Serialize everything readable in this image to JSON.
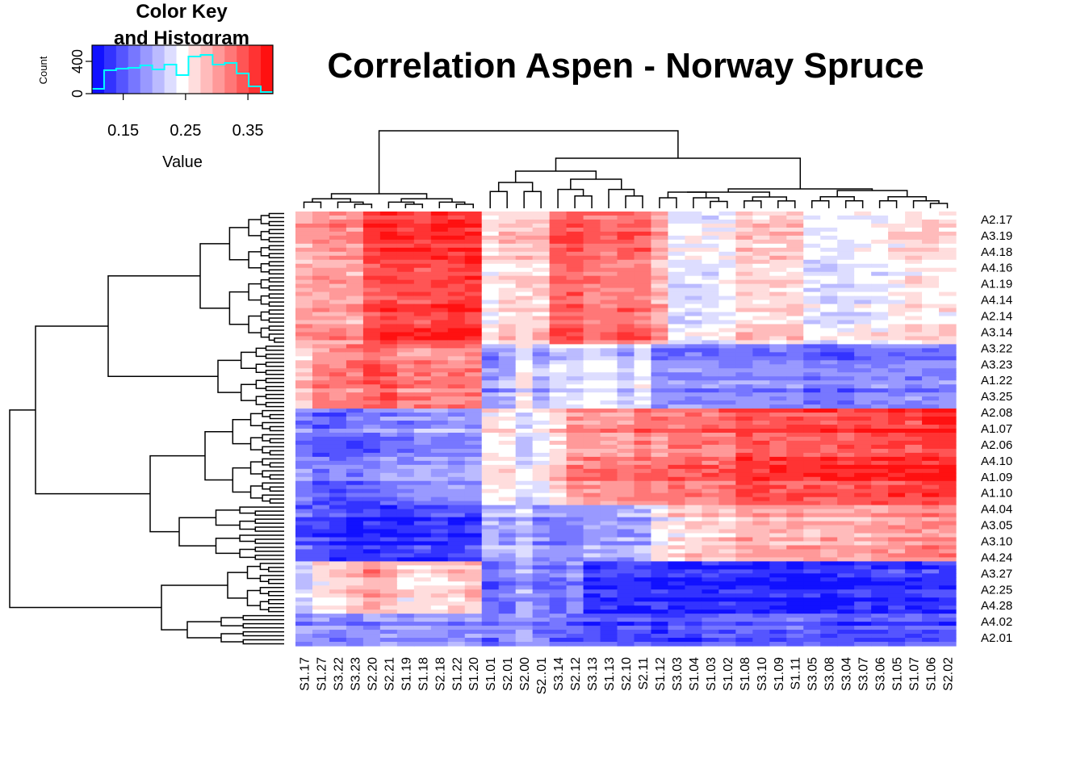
{
  "chart_data": {
    "type": "heatmap",
    "title": "Correlation Aspen - Norway Spruce",
    "color_key": {
      "title_line1": "Color Key",
      "title_line2": "and Histogram",
      "xlabel": "Value",
      "ylabel": "Count",
      "x_ticks": [
        "0.15",
        "0.25",
        "0.35"
      ],
      "x_tick_values": [
        0.15,
        0.25,
        0.35
      ],
      "y_ticks": [
        "0",
        "400"
      ],
      "y_tick_values": [
        0,
        400
      ],
      "value_range": [
        0.1,
        0.39
      ],
      "count_max": 600,
      "histogram_counts": [
        60,
        290,
        310,
        320,
        350,
        300,
        360,
        230,
        460,
        480,
        360,
        380,
        250,
        90,
        20
      ],
      "colors": [
        "#0000ff",
        "#ffffff",
        "#ff0000"
      ],
      "histogram_color": "#00ffff"
    },
    "columns": [
      "S1.17",
      "S1.27",
      "S3.22",
      "S3.23",
      "S2.20",
      "S2.21",
      "S1.19",
      "S1.18",
      "S2.18",
      "S1.22",
      "S1.20",
      "S1.01",
      "S2.01",
      "S2.00",
      "S2..01",
      "S3.14",
      "S2.12",
      "S3.13",
      "S1.13",
      "S2.10",
      "S2.11",
      "S1.12",
      "S3.03",
      "S1.04",
      "S1.03",
      "S1.02",
      "S1.08",
      "S3.10",
      "S1.09",
      "S1.11",
      "S3.05",
      "S3.08",
      "S3.04",
      "S3.07",
      "S3.06",
      "S1.05",
      "S1.07",
      "S1.06",
      "S2.02"
    ],
    "row_labels": [
      "A2.17",
      "A3.19",
      "A4.18",
      "A4.16",
      "A1.19",
      "A4.14",
      "A2.14",
      "A3.14",
      "A3.22",
      "A3.23",
      "A1.22",
      "A3.25",
      "A2.08",
      "A1.07",
      "A2.06",
      "A4.10",
      "A1.09",
      "A1.10",
      "A4.04",
      "A3.05",
      "A3.10",
      "A4.24",
      "A3.27",
      "A2.25",
      "A4.28",
      "A4.02",
      "A2.01"
    ],
    "row_block_order": [
      "1",
      "2",
      "3",
      "4",
      "5",
      "6"
    ],
    "column_groups": [
      1,
      1,
      1,
      1,
      1,
      1,
      1,
      1,
      1,
      1,
      1,
      2,
      2,
      2,
      2,
      3,
      3,
      3,
      3,
      3,
      3,
      4,
      4,
      4,
      4,
      4,
      5,
      5,
      5,
      5,
      6,
      6,
      6,
      6,
      6,
      6,
      6,
      6,
      6
    ],
    "block_means": {
      "1": [
        0.29,
        0.3,
        0.3,
        0.3,
        0.35,
        0.36,
        0.35,
        0.35,
        0.36,
        0.36,
        0.36,
        0.25,
        0.27,
        0.27,
        0.27,
        0.34,
        0.34,
        0.32,
        0.32,
        0.33,
        0.33,
        0.29,
        0.23,
        0.23,
        0.23,
        0.24,
        0.27,
        0.27,
        0.27,
        0.27,
        0.23,
        0.23,
        0.23,
        0.24,
        0.24,
        0.25,
        0.26,
        0.26,
        0.26
      ],
      "2": [
        0.27,
        0.31,
        0.31,
        0.31,
        0.33,
        0.33,
        0.31,
        0.31,
        0.31,
        0.31,
        0.31,
        0.18,
        0.19,
        0.24,
        0.19,
        0.22,
        0.22,
        0.23,
        0.23,
        0.2,
        0.23,
        0.17,
        0.17,
        0.17,
        0.17,
        0.17,
        0.17,
        0.17,
        0.17,
        0.17,
        0.16,
        0.16,
        0.16,
        0.17,
        0.17,
        0.17,
        0.17,
        0.17,
        0.17
      ],
      "3": [
        0.18,
        0.16,
        0.16,
        0.16,
        0.17,
        0.18,
        0.18,
        0.19,
        0.19,
        0.19,
        0.19,
        0.26,
        0.26,
        0.23,
        0.25,
        0.27,
        0.31,
        0.31,
        0.31,
        0.31,
        0.33,
        0.32,
        0.33,
        0.33,
        0.33,
        0.33,
        0.36,
        0.35,
        0.35,
        0.35,
        0.35,
        0.35,
        0.35,
        0.36,
        0.36,
        0.36,
        0.36,
        0.37,
        0.37
      ],
      "4": [
        0.15,
        0.14,
        0.13,
        0.12,
        0.12,
        0.12,
        0.12,
        0.13,
        0.13,
        0.13,
        0.13,
        0.2,
        0.19,
        0.22,
        0.18,
        0.17,
        0.17,
        0.19,
        0.19,
        0.19,
        0.2,
        0.24,
        0.26,
        0.27,
        0.27,
        0.27,
        0.29,
        0.29,
        0.29,
        0.29,
        0.29,
        0.29,
        0.29,
        0.29,
        0.3,
        0.3,
        0.3,
        0.31,
        0.31
      ],
      "5": [
        0.22,
        0.26,
        0.27,
        0.28,
        0.3,
        0.29,
        0.26,
        0.26,
        0.27,
        0.28,
        0.28,
        0.16,
        0.17,
        0.2,
        0.17,
        0.16,
        0.18,
        0.13,
        0.13,
        0.13,
        0.13,
        0.13,
        0.12,
        0.12,
        0.12,
        0.13,
        0.12,
        0.12,
        0.12,
        0.12,
        0.12,
        0.12,
        0.12,
        0.13,
        0.13,
        0.13,
        0.13,
        0.13,
        0.13
      ],
      "6": [
        0.18,
        0.18,
        0.17,
        0.17,
        0.18,
        0.18,
        0.18,
        0.18,
        0.18,
        0.18,
        0.18,
        0.16,
        0.17,
        0.19,
        0.17,
        0.16,
        0.15,
        0.14,
        0.14,
        0.14,
        0.14,
        0.13,
        0.14,
        0.14,
        0.15,
        0.15,
        0.15,
        0.15,
        0.15,
        0.15,
        0.15,
        0.14,
        0.14,
        0.14,
        0.14,
        0.14,
        0.14,
        0.14,
        0.14
      ]
    },
    "grid": false,
    "legend_position": "top-left"
  }
}
